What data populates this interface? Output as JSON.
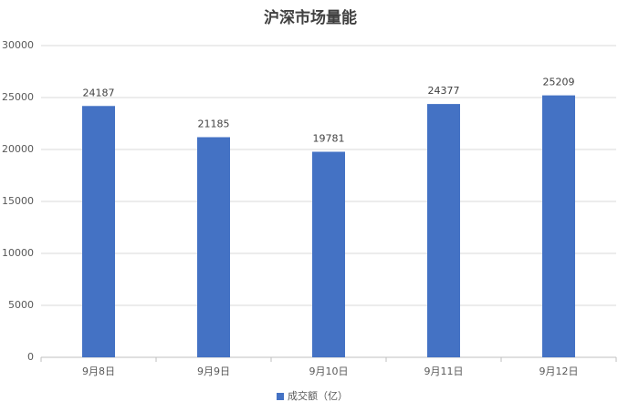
{
  "chart_data": {
    "type": "bar",
    "title": "沪深市场量能",
    "categories": [
      "9月8日",
      "9月9日",
      "9月10日",
      "9月11日",
      "9月12日"
    ],
    "series": [
      {
        "name": "成交额（亿）",
        "color": "#4472c4",
        "values": [
          24187,
          21185,
          19781,
          24377,
          25209
        ]
      }
    ],
    "ylim": [
      0,
      30000
    ],
    "yticks": [
      0,
      5000,
      10000,
      15000,
      20000,
      25000,
      30000
    ],
    "grid": true,
    "legend": "bottom"
  }
}
